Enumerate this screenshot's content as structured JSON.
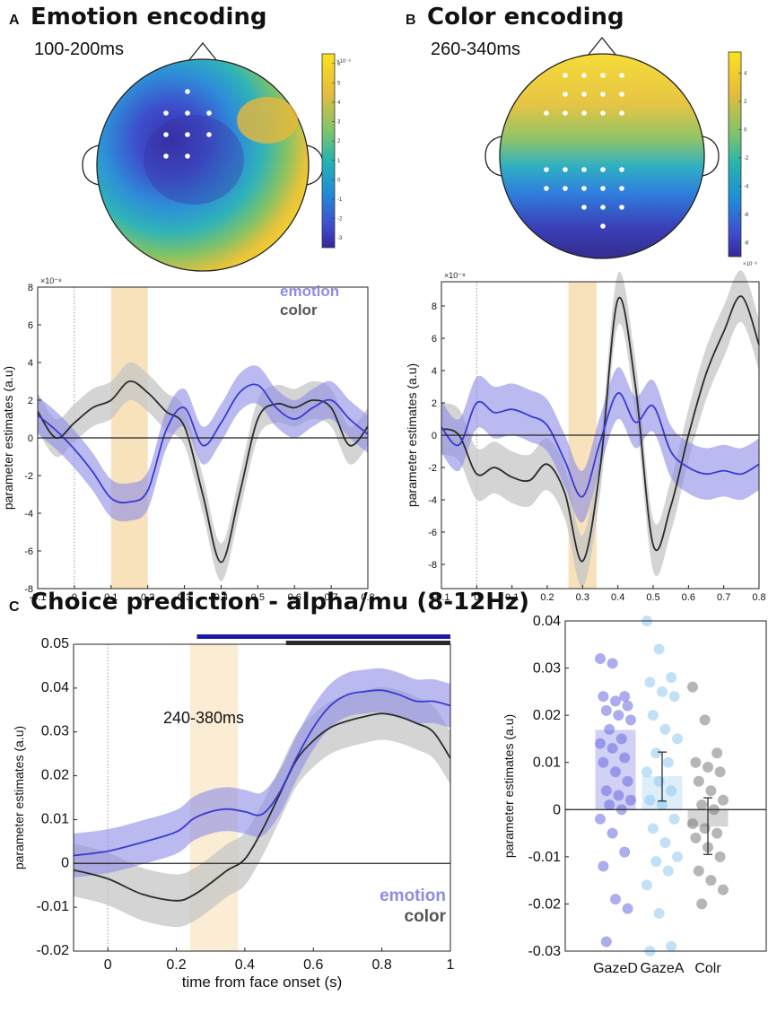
{
  "panels": {
    "A": {
      "letter": "A",
      "title": "Emotion encoding",
      "window": "100-200ms"
    },
    "B": {
      "letter": "B",
      "title": "Color encoding",
      "window": "260-340ms"
    },
    "C": {
      "letter": "C",
      "title": "Choice prediction - alpha/mu (8-12Hz)",
      "window": "240-380ms"
    }
  },
  "colors": {
    "emotion": "#3a3ad0",
    "emotion_band": "#8c8ce6",
    "color": "#2b2b2b",
    "color_band": "#c6c6c6",
    "highlight": "#f7ddb0",
    "gazeD": "#6a6ae0",
    "gazeA": "#8fc9f0",
    "colr": "#7a7a7a"
  },
  "chart_data": [
    {
      "id": "topo_A",
      "type": "heatmap",
      "colorbar_exponent": "×10⁻⁸",
      "colorbar_ticks": [
        "6",
        "5",
        "4",
        "3",
        "2",
        "1",
        "0",
        "-1",
        "-2",
        "-3"
      ],
      "colorbar_range": [
        -3.5,
        6.5
      ]
    },
    {
      "id": "topo_B",
      "type": "heatmap",
      "colorbar_exponent": "×10⁻⁸",
      "colorbar_ticks": [
        "4",
        "2",
        "0",
        "-2",
        "-4",
        "-6",
        "-8"
      ],
      "colorbar_range": [
        -9,
        5.5
      ]
    },
    {
      "id": "line_A",
      "type": "line",
      "exponent": "×10⁻⁸",
      "ylabel": "parameter estimates (a.u)",
      "xlim": [
        -0.1,
        0.8
      ],
      "ylim": [
        -8,
        8
      ],
      "xticks": [
        -0.1,
        0,
        0.1,
        0.2,
        0.3,
        0.4,
        0.5,
        0.6,
        0.7,
        0.8
      ],
      "yticks": [
        -8,
        -6,
        -4,
        -2,
        0,
        2,
        4,
        6,
        8
      ],
      "highlight": [
        0.1,
        0.2
      ],
      "legend": [
        "emotion",
        "color"
      ],
      "series": [
        {
          "name": "emotion",
          "band": 1.0,
          "x": [
            -0.1,
            -0.05,
            0,
            0.05,
            0.1,
            0.15,
            0.2,
            0.25,
            0.3,
            0.35,
            0.4,
            0.45,
            0.5,
            0.55,
            0.6,
            0.65,
            0.7,
            0.75,
            0.8
          ],
          "y": [
            1.2,
            0.4,
            -0.6,
            -1.8,
            -3.2,
            -3.4,
            -2.8,
            0.4,
            1.6,
            -0.4,
            0.8,
            2.4,
            2.8,
            1.6,
            1.0,
            1.6,
            2.0,
            1.0,
            0.2
          ]
        },
        {
          "name": "color",
          "band": 1.0,
          "x": [
            -0.1,
            -0.05,
            0,
            0.05,
            0.1,
            0.15,
            0.2,
            0.25,
            0.3,
            0.35,
            0.4,
            0.45,
            0.5,
            0.55,
            0.6,
            0.65,
            0.7,
            0.75,
            0.8
          ],
          "y": [
            1.4,
            0,
            0.8,
            1.6,
            2.0,
            3.0,
            2.4,
            1.4,
            0.6,
            -3.0,
            -6.6,
            -3.0,
            1.0,
            1.8,
            1.6,
            2.0,
            1.6,
            -0.4,
            0.6
          ]
        }
      ]
    },
    {
      "id": "line_B",
      "type": "line",
      "exponent": "×10⁻⁸",
      "ylabel": "parameter estimates (a.u)",
      "xlim": [
        -0.1,
        0.8
      ],
      "ylim": [
        -9.5,
        9.5
      ],
      "xticks": [
        -0.1,
        0,
        0.1,
        0.2,
        0.3,
        0.4,
        0.5,
        0.6,
        0.7,
        0.8
      ],
      "yticks": [
        -8,
        -6,
        -4,
        -2,
        0,
        2,
        4,
        6,
        8
      ],
      "highlight": [
        0.26,
        0.34
      ],
      "series": [
        {
          "name": "emotion",
          "band": 1.6,
          "x": [
            -0.1,
            -0.05,
            0,
            0.05,
            0.1,
            0.15,
            0.2,
            0.25,
            0.3,
            0.35,
            0.4,
            0.45,
            0.5,
            0.55,
            0.6,
            0.65,
            0.7,
            0.75,
            0.8
          ],
          "y": [
            0.5,
            -0.6,
            2.0,
            1.4,
            1.6,
            1.2,
            0.6,
            -1.6,
            -3.8,
            -0.4,
            2.6,
            0.8,
            1.8,
            -1.0,
            -2.0,
            -2.4,
            -2.2,
            -2.4,
            -1.8
          ]
        },
        {
          "name": "color",
          "band": 1.6,
          "x": [
            -0.1,
            -0.05,
            0,
            0.05,
            0.1,
            0.15,
            0.2,
            0.25,
            0.3,
            0.35,
            0.4,
            0.45,
            0.5,
            0.55,
            0.6,
            0.65,
            0.7,
            0.75,
            0.8
          ],
          "y": [
            0.4,
            0,
            -2.4,
            -2.0,
            -2.6,
            -2.8,
            -1.8,
            -3.6,
            -7.8,
            -2.0,
            8.4,
            3.0,
            -6.8,
            -4.4,
            0,
            3.8,
            6.4,
            8.6,
            5.6
          ]
        }
      ]
    },
    {
      "id": "line_C",
      "type": "line",
      "xlabel": "time from face onset (s)",
      "ylabel": "parameter estimates (a.u)",
      "xlim": [
        -0.1,
        1
      ],
      "ylim": [
        -0.02,
        0.05
      ],
      "xticks": [
        0,
        0.2,
        0.4,
        0.6,
        0.8,
        1
      ],
      "yticks": [
        -0.02,
        -0.01,
        0,
        0.01,
        0.02,
        0.03,
        0.04,
        0.05
      ],
      "ytick_labels": [
        "-0.02",
        "-0.01",
        "0",
        "0.01",
        "0.02",
        "0.03",
        "0.04",
        "0.05"
      ],
      "xtick_labels": [
        "0",
        "0.2",
        "0.4",
        "0.6",
        "0.8",
        "1"
      ],
      "highlight": [
        0.24,
        0.38
      ],
      "legend": [
        "emotion",
        "color"
      ],
      "significance": [
        {
          "series": "emotion",
          "from": 0.26,
          "to": 1.0
        },
        {
          "series": "color",
          "from": 0.52,
          "to": 1.0
        }
      ],
      "series": [
        {
          "name": "emotion",
          "band": 0.005,
          "x": [
            -0.1,
            0,
            0.1,
            0.2,
            0.25,
            0.3,
            0.35,
            0.4,
            0.45,
            0.5,
            0.55,
            0.6,
            0.65,
            0.7,
            0.75,
            0.8,
            0.85,
            0.9,
            0.95,
            1.0
          ],
          "y": [
            0.0018,
            0.0028,
            0.0048,
            0.0072,
            0.0102,
            0.0118,
            0.0124,
            0.0118,
            0.0112,
            0.016,
            0.024,
            0.031,
            0.036,
            0.0385,
            0.0392,
            0.0395,
            0.0385,
            0.037,
            0.037,
            0.036
          ]
        },
        {
          "name": "color",
          "band": 0.006,
          "x": [
            -0.1,
            0,
            0.1,
            0.2,
            0.25,
            0.3,
            0.35,
            0.4,
            0.45,
            0.5,
            0.55,
            0.6,
            0.65,
            0.7,
            0.75,
            0.8,
            0.85,
            0.9,
            0.95,
            1.0
          ],
          "y": [
            -0.0015,
            -0.0035,
            -0.007,
            -0.0085,
            -0.0072,
            -0.0045,
            -0.0015,
            0.001,
            0.0075,
            0.0155,
            0.0235,
            0.028,
            0.031,
            0.0325,
            0.0335,
            0.0342,
            0.0335,
            0.032,
            0.03,
            0.024
          ]
        }
      ]
    },
    {
      "id": "bar_C",
      "type": "bar",
      "ylabel": "parameter estimates (a.u)",
      "categories": [
        "GazeD",
        "GazeA",
        "Colr"
      ],
      "values": [
        0.0168,
        0.007,
        -0.0035
      ],
      "errors": [
        0.0,
        0.0052,
        0.006
      ],
      "ylim": [
        -0.03,
        0.04
      ],
      "yticks": [
        -0.03,
        -0.02,
        -0.01,
        0,
        0.01,
        0.02,
        0.03,
        0.04
      ],
      "ytick_labels": [
        "-0.03",
        "-0.02",
        "-0.01",
        "0",
        "0.01",
        "0.02",
        "0.03",
        "0.04"
      ],
      "points": [
        [
          0.032,
          0.031,
          0.024,
          0.024,
          0.023,
          0.022,
          0.021,
          0.02,
          0.019,
          0.017,
          0.015,
          0.014,
          0.013,
          0.011,
          0.01,
          0.008,
          0.006,
          0.004,
          0.003,
          0.002,
          0.001,
          0.0,
          -0.002,
          -0.005,
          -0.009,
          -0.012,
          -0.019,
          -0.021,
          -0.028
        ],
        [
          0.04,
          0.034,
          0.028,
          0.027,
          0.025,
          0.024,
          0.02,
          0.017,
          0.015,
          0.012,
          0.01,
          0.008,
          0.006,
          0.004,
          0.002,
          0.001,
          -0.002,
          -0.004,
          -0.007,
          -0.01,
          -0.011,
          -0.013,
          -0.016,
          -0.022,
          -0.029,
          -0.03
        ],
        [
          0.026,
          0.019,
          0.012,
          0.01,
          0.009,
          0.008,
          0.006,
          0.004,
          0.002,
          0.001,
          0.0,
          -0.003,
          -0.004,
          -0.005,
          -0.006,
          -0.008,
          -0.01,
          -0.013,
          -0.015,
          -0.017,
          -0.02
        ]
      ]
    }
  ]
}
